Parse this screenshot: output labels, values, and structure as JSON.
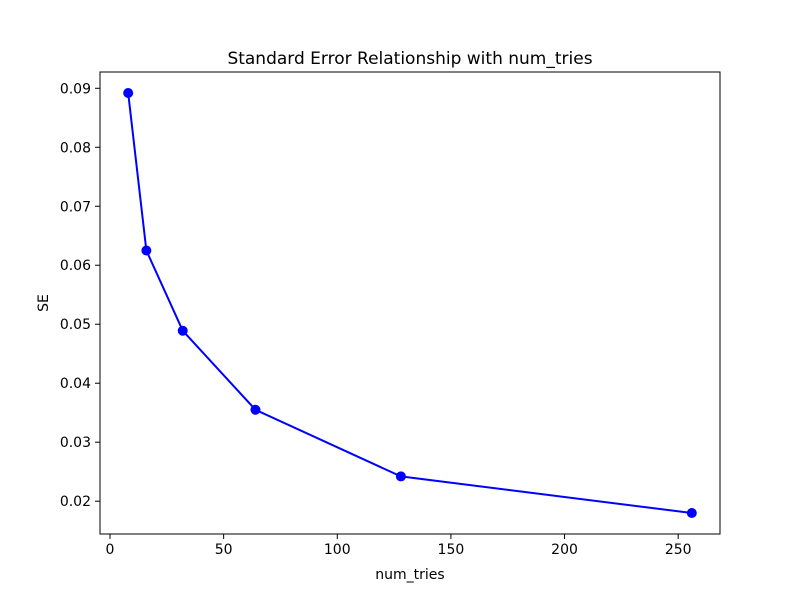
{
  "figure": {
    "background": "#ffffff"
  },
  "chart_data": {
    "type": "line",
    "title": "Standard Error Relationship with num_tries",
    "xlabel": "num_tries",
    "ylabel": "SE",
    "x": [
      8,
      16,
      32,
      64,
      128,
      256
    ],
    "series": [
      {
        "name": "SE",
        "values": [
          0.0892,
          0.0625,
          0.0489,
          0.0355,
          0.0242,
          0.018
        ],
        "color": "#0000ff",
        "marker": "circle",
        "line_width": 2
      }
    ],
    "xlim": [
      -4.4,
      268.4
    ],
    "ylim": [
      0.01444,
      0.09276
    ],
    "xticks": [
      0,
      50,
      100,
      150,
      200,
      250
    ],
    "xtick_labels": [
      "0",
      "50",
      "100",
      "150",
      "200",
      "250"
    ],
    "yticks": [
      0.02,
      0.03,
      0.04,
      0.05,
      0.06,
      0.07,
      0.08,
      0.09
    ],
    "ytick_labels": [
      "0.02",
      "0.03",
      "0.04",
      "0.05",
      "0.06",
      "0.07",
      "0.08",
      "0.09"
    ],
    "grid": false,
    "legend_position": "none",
    "axis_color": "#000000",
    "text_color": "#000000",
    "plot_background": "#ffffff"
  }
}
